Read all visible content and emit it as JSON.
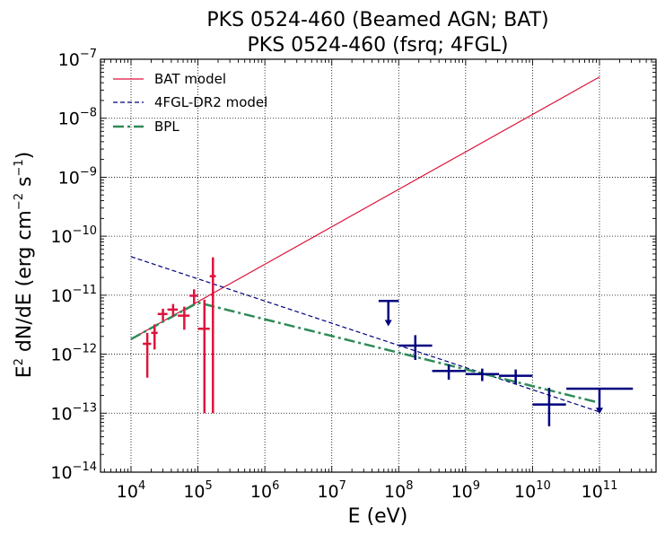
{
  "chart_data": {
    "type": "scatter",
    "title": "PKS 0524-460 (Beamed AGN; BAT)",
    "subtitle": "PKS 0524-460 (fsrq; 4FGL)",
    "xlabel": "E (eV)",
    "ylabel": "E² dN/dE (erg cm⁻² s⁻¹)",
    "xscale": "log",
    "yscale": "log",
    "xlim": [
      3500,
      700000000000.0
    ],
    "ylim": [
      1e-14,
      1e-07
    ],
    "grid": true,
    "legend_position": "top-left",
    "x_ticks": [
      {
        "value": 10000,
        "base": "10",
        "exp": "4"
      },
      {
        "value": 100000,
        "base": "10",
        "exp": "5"
      },
      {
        "value": 1000000,
        "base": "10",
        "exp": "6"
      },
      {
        "value": 10000000,
        "base": "10",
        "exp": "7"
      },
      {
        "value": 100000000,
        "base": "10",
        "exp": "8"
      },
      {
        "value": 1000000000,
        "base": "10",
        "exp": "9"
      },
      {
        "value": 10000000000,
        "base": "10",
        "exp": "10"
      },
      {
        "value": 100000000000,
        "base": "10",
        "exp": "11"
      }
    ],
    "y_ticks": [
      {
        "value": 1e-14,
        "base": "10",
        "exp": "−14"
      },
      {
        "value": 1e-13,
        "base": "10",
        "exp": "−13"
      },
      {
        "value": 1e-12,
        "base": "10",
        "exp": "−12"
      },
      {
        "value": 1e-11,
        "base": "10",
        "exp": "−11"
      },
      {
        "value": 1e-10,
        "base": "10",
        "exp": "−10"
      },
      {
        "value": 1e-09,
        "base": "10",
        "exp": "−9"
      },
      {
        "value": 1e-08,
        "base": "10",
        "exp": "−8"
      },
      {
        "value": 1e-07,
        "base": "10",
        "exp": "−7"
      }
    ],
    "lines": [
      {
        "name": "BAT model",
        "color": "#dc143c",
        "style": "solid",
        "width": 1.2,
        "points": [
          [
            10000,
            1.8e-12
          ],
          [
            100000000000,
            5e-08
          ]
        ]
      },
      {
        "name": "4FGL-DR2 model",
        "color": "#00007f",
        "style": "dashed",
        "width": 1.2,
        "points": [
          [
            10000,
            4.5e-11
          ],
          [
            100000000000,
            1.05e-13
          ]
        ]
      },
      {
        "name": "BPL",
        "color": "#2e8b57",
        "style": "dashdot",
        "width": 2.5,
        "points": [
          [
            10000,
            1.8e-12
          ],
          [
            100000,
            7.5e-12
          ],
          [
            100000000000,
            1.5e-13
          ]
        ]
      }
    ],
    "series": [
      {
        "name": "BAT",
        "color": "#dc143c",
        "points": [
          {
            "x": 17500,
            "y": 1.5e-12,
            "xerr": [
              2500,
              2500
            ],
            "yerr": [
              1.1e-12,
              8e-13
            ]
          },
          {
            "x": 22500,
            "y": 2.3e-12,
            "xerr": [
              2500,
              2500
            ],
            "yerr": [
              1.1e-12,
              9e-13
            ]
          },
          {
            "x": 30000,
            "y": 4.8e-12,
            "xerr": [
              5000,
              5000
            ],
            "yerr": [
              1.1e-12,
              1.1e-12
            ]
          },
          {
            "x": 42500,
            "y": 5.7e-12,
            "xerr": [
              7500,
              7500
            ],
            "yerr": [
              1.4e-12,
              1.4e-12
            ]
          },
          {
            "x": 62500,
            "y": 4.5e-12,
            "xerr": [
              12500,
              12500
            ],
            "yerr": [
              1.9e-12,
              1.9e-12
            ]
          },
          {
            "x": 87500,
            "y": 9.8e-12,
            "xerr": [
              12500,
              12500
            ],
            "yerr": [
              2.8e-12,
              2.8e-12
            ]
          },
          {
            "x": 125000,
            "y": 2.7e-12,
            "xerr": [
              25000,
              25000
            ],
            "yerr": [
              2.6e-12,
              5.7e-12
            ]
          },
          {
            "x": 167500,
            "y": 2.1e-11,
            "xerr": [
              17500,
              17500
            ],
            "yerr": [
              2.09e-11,
              2.3e-11
            ]
          }
        ]
      },
      {
        "name": "4FGL",
        "color": "#00007f",
        "points": [
          {
            "x": 177000000,
            "y": 1.4e-12,
            "xerr": [
              77000000,
              139000000
            ],
            "yerr": [
              6e-13,
              7e-13
            ]
          },
          {
            "x": 560000000,
            "y": 5.2e-13,
            "xerr": [
              244000000,
              440000000
            ],
            "yerr": [
              1.5e-13,
              1.5e-13
            ]
          },
          {
            "x": 1770000000,
            "y": 4.6e-13,
            "xerr": [
              770000000,
              1390000000
            ],
            "yerr": [
              1.1e-13,
              1.1e-13
            ]
          },
          {
            "x": 5600000000,
            "y": 4.3e-13,
            "xerr": [
              2440000000,
              4400000000
            ],
            "yerr": [
              1.2e-13,
              1.2e-13
            ]
          },
          {
            "x": 17700000000,
            "y": 1.4e-13,
            "xerr": [
              7700000000,
              13900000000
            ],
            "yerr": [
              8e-14,
              1.3e-13
            ]
          }
        ],
        "upper_limits": [
          {
            "x": 70000000,
            "y": 8e-12,
            "xerr": [
              20000000,
              30000000
            ]
          },
          {
            "x": 100000000000,
            "y": 2.6e-13,
            "xerr": [
              68000000000,
              216000000000
            ]
          }
        ]
      }
    ]
  }
}
